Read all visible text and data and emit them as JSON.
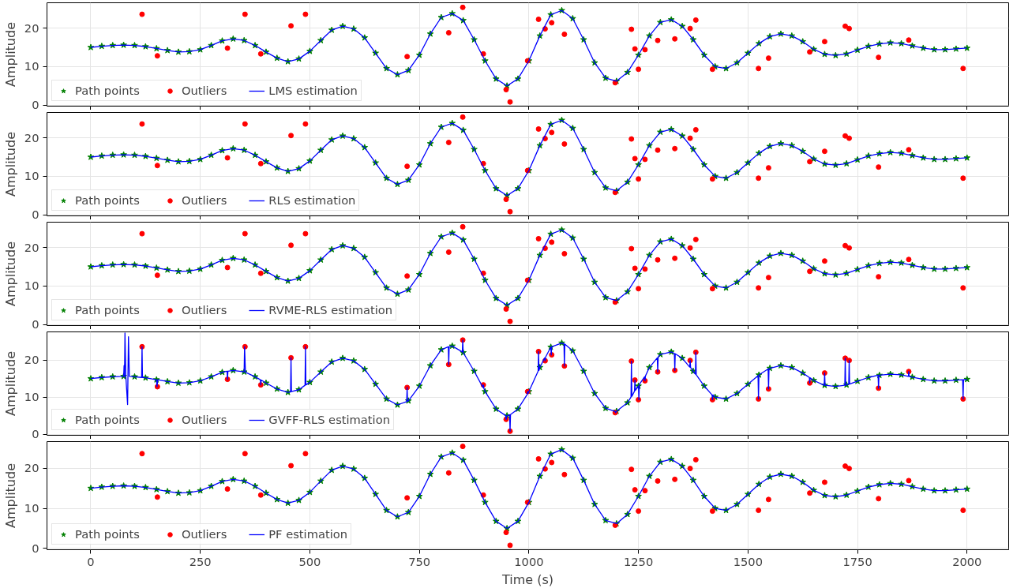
{
  "chart_data": [
    {
      "type": "line",
      "ylabel": "Amplitude",
      "xlim": [
        -100,
        2095
      ],
      "ylim": [
        -0.3,
        26.6
      ],
      "xticks": [
        0,
        250,
        500,
        750,
        1000,
        1250,
        1500,
        1750,
        2000
      ],
      "yticks": [
        0,
        10,
        20
      ],
      "tick_labels": "y",
      "grid": true,
      "legend": "bottom left",
      "x": [
        0,
        25,
        50,
        75,
        100,
        125,
        150,
        175,
        200,
        225,
        250,
        275,
        300,
        325,
        350,
        375,
        400,
        425,
        450,
        475,
        500,
        525,
        550,
        575,
        600,
        625,
        650,
        675,
        700,
        725,
        750,
        775,
        800,
        825,
        850,
        875,
        900,
        925,
        950,
        975,
        1000,
        1025,
        1050,
        1075,
        1100,
        1125,
        1150,
        1175,
        1200,
        1225,
        1250,
        1275,
        1300,
        1325,
        1350,
        1375,
        1400,
        1425,
        1450,
        1475,
        1500,
        1525,
        1550,
        1575,
        1600,
        1625,
        1650,
        1675,
        1700,
        1725,
        1750,
        1775,
        1800,
        1825,
        1850,
        1875,
        1900,
        1925,
        1950,
        1975,
        2000
      ],
      "series": [
        {
          "name": "Path points",
          "type": "scatter",
          "marker": "star",
          "color": "#008000",
          "values": [
            15,
            15.3,
            15.5,
            15.6,
            15.5,
            15.2,
            14.7,
            14.2,
            13.8,
            13.9,
            14.4,
            15.5,
            16.7,
            17.2,
            16.8,
            15.5,
            13.8,
            12.2,
            11.3,
            12.0,
            14.0,
            16.8,
            19.5,
            20.5,
            19.8,
            17.5,
            13.5,
            9.5,
            7.9,
            9.0,
            13.0,
            18.5,
            22.8,
            23.8,
            22.0,
            17.0,
            11.5,
            6.8,
            5.0,
            6.8,
            11.5,
            18.0,
            23.5,
            24.6,
            22.5,
            17.0,
            11.0,
            7.0,
            6.2,
            8.5,
            13.0,
            18.0,
            21.5,
            22.2,
            20.5,
            17.0,
            13.0,
            10.0,
            9.5,
            11.0,
            13.5,
            16.0,
            17.8,
            18.5,
            18.0,
            16.5,
            14.5,
            13.2,
            12.9,
            13.3,
            14.3,
            15.3,
            15.9,
            16.2,
            16.0,
            15.4,
            14.8,
            14.4,
            14.4,
            14.6,
            14.8
          ]
        },
        {
          "name": "Outliers",
          "type": "scatter",
          "marker": "circle",
          "color": "#ff0000",
          "x": [
            117,
            152,
            312,
            352,
            388,
            457,
            490,
            722,
            817,
            849,
            896,
            948,
            957,
            997,
            1022,
            1037,
            1052,
            1081,
            1197,
            1234,
            1242,
            1250,
            1265,
            1294,
            1333,
            1368,
            1381,
            1419,
            1524,
            1547,
            1641,
            1675,
            1722,
            1731,
            1798,
            1867,
            1991
          ],
          "values": [
            23.6,
            12.8,
            14.8,
            23.6,
            13.3,
            20.6,
            23.6,
            12.6,
            18.8,
            25.4,
            13.3,
            4.0,
            0.8,
            11.5,
            22.3,
            19.8,
            21.4,
            18.4,
            5.8,
            19.7,
            14.6,
            9.3,
            14.4,
            16.8,
            17.2,
            19.9,
            22.1,
            9.3,
            9.5,
            12.2,
            13.8,
            16.5,
            20.5,
            19.9,
            12.4,
            16.9,
            9.5
          ]
        },
        {
          "name": "LMS estimation",
          "line_style": "solid",
          "color": "#0000ff",
          "values": [
            15,
            15.3,
            15.5,
            15.6,
            15.5,
            15.2,
            14.7,
            14.2,
            13.8,
            13.9,
            14.4,
            15.5,
            16.7,
            17.2,
            16.8,
            15.5,
            13.8,
            12.2,
            11.3,
            12.0,
            14.0,
            16.8,
            19.5,
            20.5,
            19.8,
            17.5,
            13.5,
            9.5,
            7.9,
            9.0,
            13.0,
            18.5,
            22.8,
            23.8,
            22.0,
            17.0,
            11.5,
            6.8,
            5.0,
            6.8,
            11.5,
            18.0,
            23.5,
            24.6,
            22.5,
            17.0,
            11.0,
            7.0,
            6.2,
            8.5,
            13.0,
            18.0,
            21.5,
            22.2,
            20.5,
            17.0,
            13.0,
            10.0,
            9.5,
            11.0,
            13.5,
            16.0,
            17.8,
            18.5,
            18.0,
            16.5,
            14.5,
            13.2,
            12.9,
            13.3,
            14.3,
            15.3,
            15.9,
            16.2,
            16.0,
            15.4,
            14.8,
            14.4,
            14.4,
            14.6,
            14.8
          ]
        }
      ]
    },
    {
      "type": "line",
      "ylabel": "Amplitude",
      "xlim": [
        -100,
        2095
      ],
      "ylim": [
        -0.3,
        26.6
      ],
      "xticks": [
        0,
        250,
        500,
        750,
        1000,
        1250,
        1500,
        1750,
        2000
      ],
      "yticks": [
        0,
        10,
        20
      ],
      "tick_labels": "y",
      "grid": true,
      "legend": "bottom left",
      "x": [
        0,
        25,
        50,
        75,
        100,
        125,
        150,
        175,
        200,
        225,
        250,
        275,
        300,
        325,
        350,
        375,
        400,
        425,
        450,
        475,
        500,
        525,
        550,
        575,
        600,
        625,
        650,
        675,
        700,
        725,
        750,
        775,
        800,
        825,
        850,
        875,
        900,
        925,
        950,
        975,
        1000,
        1025,
        1050,
        1075,
        1100,
        1125,
        1150,
        1175,
        1200,
        1225,
        1250,
        1275,
        1300,
        1325,
        1350,
        1375,
        1400,
        1425,
        1450,
        1475,
        1500,
        1525,
        1550,
        1575,
        1600,
        1625,
        1650,
        1675,
        1700,
        1725,
        1750,
        1775,
        1800,
        1825,
        1850,
        1875,
        1900,
        1925,
        1950,
        1975,
        2000
      ],
      "series": [
        {
          "name": "Path points",
          "type": "scatter",
          "marker": "star",
          "color": "#008000",
          "values": [
            15,
            15.3,
            15.5,
            15.6,
            15.5,
            15.2,
            14.7,
            14.2,
            13.8,
            13.9,
            14.4,
            15.5,
            16.7,
            17.2,
            16.8,
            15.5,
            13.8,
            12.2,
            11.3,
            12.0,
            14.0,
            16.8,
            19.5,
            20.5,
            19.8,
            17.5,
            13.5,
            9.5,
            7.9,
            9.0,
            13.0,
            18.5,
            22.8,
            23.8,
            22.0,
            17.0,
            11.5,
            6.8,
            5.0,
            6.8,
            11.5,
            18.0,
            23.5,
            24.6,
            22.5,
            17.0,
            11.0,
            7.0,
            6.2,
            8.5,
            13.0,
            18.0,
            21.5,
            22.2,
            20.5,
            17.0,
            13.0,
            10.0,
            9.5,
            11.0,
            13.5,
            16.0,
            17.8,
            18.5,
            18.0,
            16.5,
            14.5,
            13.2,
            12.9,
            13.3,
            14.3,
            15.3,
            15.9,
            16.2,
            16.0,
            15.4,
            14.8,
            14.4,
            14.4,
            14.6,
            14.8
          ]
        },
        {
          "name": "Outliers",
          "type": "scatter",
          "marker": "circle",
          "color": "#ff0000",
          "x": [
            117,
            152,
            312,
            352,
            388,
            457,
            490,
            722,
            817,
            849,
            896,
            948,
            957,
            997,
            1022,
            1037,
            1052,
            1081,
            1197,
            1234,
            1242,
            1250,
            1265,
            1294,
            1333,
            1368,
            1381,
            1419,
            1524,
            1547,
            1641,
            1675,
            1722,
            1731,
            1798,
            1867,
            1991
          ],
          "values": [
            23.6,
            12.8,
            14.8,
            23.6,
            13.3,
            20.6,
            23.6,
            12.6,
            18.8,
            25.4,
            13.3,
            4.0,
            0.8,
            11.5,
            22.3,
            19.8,
            21.4,
            18.4,
            5.8,
            19.7,
            14.6,
            9.3,
            14.4,
            16.8,
            17.2,
            19.9,
            22.1,
            9.3,
            9.5,
            12.2,
            13.8,
            16.5,
            20.5,
            19.9,
            12.4,
            16.9,
            9.5
          ]
        },
        {
          "name": "RLS estimation",
          "line_style": "solid",
          "color": "#0000ff",
          "values": [
            15,
            15.3,
            15.5,
            15.6,
            15.5,
            15.2,
            14.7,
            14.2,
            13.8,
            13.9,
            14.4,
            15.5,
            16.7,
            17.2,
            16.8,
            15.5,
            13.8,
            12.2,
            11.3,
            12.0,
            14.0,
            16.8,
            19.5,
            20.5,
            19.8,
            17.5,
            13.5,
            9.5,
            7.9,
            9.0,
            13.0,
            18.5,
            22.8,
            23.8,
            22.0,
            17.0,
            11.5,
            6.8,
            5.0,
            6.8,
            11.5,
            18.0,
            23.5,
            24.6,
            22.5,
            17.0,
            11.0,
            7.0,
            6.2,
            8.5,
            13.0,
            18.0,
            21.5,
            22.2,
            20.5,
            17.0,
            13.0,
            10.0,
            9.5,
            11.0,
            13.5,
            16.0,
            17.8,
            18.5,
            18.0,
            16.5,
            14.5,
            13.2,
            12.9,
            13.3,
            14.3,
            15.3,
            15.9,
            16.2,
            16.0,
            15.4,
            14.8,
            14.4,
            14.4,
            14.6,
            14.8
          ]
        }
      ]
    },
    {
      "type": "line",
      "ylabel": "Amplitude",
      "xlim": [
        -100,
        2095
      ],
      "ylim": [
        -0.3,
        26.6
      ],
      "xticks": [
        0,
        250,
        500,
        750,
        1000,
        1250,
        1500,
        1750,
        2000
      ],
      "yticks": [
        0,
        10,
        20
      ],
      "tick_labels": "y",
      "grid": true,
      "legend": "bottom left",
      "x": [
        0,
        25,
        50,
        75,
        100,
        125,
        150,
        175,
        200,
        225,
        250,
        275,
        300,
        325,
        350,
        375,
        400,
        425,
        450,
        475,
        500,
        525,
        550,
        575,
        600,
        625,
        650,
        675,
        700,
        725,
        750,
        775,
        800,
        825,
        850,
        875,
        900,
        925,
        950,
        975,
        1000,
        1025,
        1050,
        1075,
        1100,
        1125,
        1150,
        1175,
        1200,
        1225,
        1250,
        1275,
        1300,
        1325,
        1350,
        1375,
        1400,
        1425,
        1450,
        1475,
        1500,
        1525,
        1550,
        1575,
        1600,
        1625,
        1650,
        1675,
        1700,
        1725,
        1750,
        1775,
        1800,
        1825,
        1850,
        1875,
        1900,
        1925,
        1950,
        1975,
        2000
      ],
      "series": [
        {
          "name": "Path points",
          "type": "scatter",
          "marker": "star",
          "color": "#008000",
          "values": [
            15,
            15.3,
            15.5,
            15.6,
            15.5,
            15.2,
            14.7,
            14.2,
            13.8,
            13.9,
            14.4,
            15.5,
            16.7,
            17.2,
            16.8,
            15.5,
            13.8,
            12.2,
            11.3,
            12.0,
            14.0,
            16.8,
            19.5,
            20.5,
            19.8,
            17.5,
            13.5,
            9.5,
            7.9,
            9.0,
            13.0,
            18.5,
            22.8,
            23.8,
            22.0,
            17.0,
            11.5,
            6.8,
            5.0,
            6.8,
            11.5,
            18.0,
            23.5,
            24.6,
            22.5,
            17.0,
            11.0,
            7.0,
            6.2,
            8.5,
            13.0,
            18.0,
            21.5,
            22.2,
            20.5,
            17.0,
            13.0,
            10.0,
            9.5,
            11.0,
            13.5,
            16.0,
            17.8,
            18.5,
            18.0,
            16.5,
            14.5,
            13.2,
            12.9,
            13.3,
            14.3,
            15.3,
            15.9,
            16.2,
            16.0,
            15.4,
            14.8,
            14.4,
            14.4,
            14.6,
            14.8
          ]
        },
        {
          "name": "Outliers",
          "type": "scatter",
          "marker": "circle",
          "color": "#ff0000",
          "x": [
            117,
            152,
            312,
            352,
            388,
            457,
            490,
            722,
            817,
            849,
            896,
            948,
            957,
            997,
            1022,
            1037,
            1052,
            1081,
            1197,
            1234,
            1242,
            1250,
            1265,
            1294,
            1333,
            1368,
            1381,
            1419,
            1524,
            1547,
            1641,
            1675,
            1722,
            1731,
            1798,
            1867,
            1991
          ],
          "values": [
            23.6,
            12.8,
            14.8,
            23.6,
            13.3,
            20.6,
            23.6,
            12.6,
            18.8,
            25.4,
            13.3,
            4.0,
            0.8,
            11.5,
            22.3,
            19.8,
            21.4,
            18.4,
            5.8,
            19.7,
            14.6,
            9.3,
            14.4,
            16.8,
            17.2,
            19.9,
            22.1,
            9.3,
            9.5,
            12.2,
            13.8,
            16.5,
            20.5,
            19.9,
            12.4,
            16.9,
            9.5
          ]
        },
        {
          "name": "RVME-RLS estimation",
          "line_style": "solid",
          "color": "#0000ff",
          "values": [
            15,
            15.3,
            15.5,
            15.6,
            15.5,
            15.2,
            14.7,
            14.2,
            13.8,
            13.9,
            14.4,
            15.5,
            16.7,
            17.2,
            16.8,
            15.5,
            13.8,
            12.2,
            11.3,
            12.0,
            14.0,
            16.8,
            19.5,
            20.5,
            19.8,
            17.5,
            13.5,
            9.5,
            7.9,
            9.0,
            13.0,
            18.5,
            22.8,
            23.8,
            22.0,
            17.0,
            11.5,
            6.8,
            5.0,
            6.8,
            11.5,
            18.0,
            23.5,
            24.6,
            22.5,
            17.0,
            11.0,
            7.0,
            6.2,
            8.5,
            13.0,
            18.0,
            21.5,
            22.2,
            20.5,
            17.0,
            13.0,
            10.0,
            9.5,
            11.0,
            13.5,
            16.0,
            17.8,
            18.5,
            18.0,
            16.5,
            14.5,
            13.2,
            12.9,
            13.3,
            14.3,
            15.3,
            15.9,
            16.2,
            16.0,
            15.4,
            14.8,
            14.4,
            14.4,
            14.6,
            14.8
          ]
        }
      ]
    },
    {
      "type": "line",
      "ylabel": "Amplitude",
      "xlim": [
        -100,
        2095
      ],
      "ylim": [
        -0.3,
        27.6
      ],
      "xticks": [
        0,
        250,
        500,
        750,
        1000,
        1250,
        1500,
        1750,
        2000
      ],
      "yticks": [
        0,
        10,
        20
      ],
      "tick_labels": "y",
      "grid": true,
      "legend": "bottom left",
      "x": [
        0,
        25,
        50,
        75,
        100,
        125,
        150,
        175,
        200,
        225,
        250,
        275,
        300,
        325,
        350,
        375,
        400,
        425,
        450,
        475,
        500,
        525,
        550,
        575,
        600,
        625,
        650,
        675,
        700,
        725,
        750,
        775,
        800,
        825,
        850,
        875,
        900,
        925,
        950,
        975,
        1000,
        1025,
        1050,
        1075,
        1100,
        1125,
        1150,
        1175,
        1200,
        1225,
        1250,
        1275,
        1300,
        1325,
        1350,
        1375,
        1400,
        1425,
        1450,
        1475,
        1500,
        1525,
        1550,
        1575,
        1600,
        1625,
        1650,
        1675,
        1700,
        1725,
        1750,
        1775,
        1800,
        1825,
        1850,
        1875,
        1900,
        1925,
        1950,
        1975,
        2000
      ],
      "series": [
        {
          "name": "Path points",
          "type": "scatter",
          "marker": "star",
          "color": "#008000",
          "values": [
            15,
            15.3,
            15.5,
            15.6,
            15.5,
            15.2,
            14.7,
            14.2,
            13.8,
            13.9,
            14.4,
            15.5,
            16.7,
            17.2,
            16.8,
            15.5,
            13.8,
            12.2,
            11.3,
            12.0,
            14.0,
            16.8,
            19.5,
            20.5,
            19.8,
            17.5,
            13.5,
            9.5,
            7.9,
            9.0,
            13.0,
            18.5,
            22.8,
            23.8,
            22.0,
            17.0,
            11.5,
            6.8,
            5.0,
            6.8,
            11.5,
            18.0,
            23.5,
            24.6,
            22.5,
            17.0,
            11.0,
            7.0,
            6.2,
            8.5,
            13.0,
            18.0,
            21.5,
            22.2,
            20.5,
            17.0,
            13.0,
            10.0,
            9.5,
            11.0,
            13.5,
            16.0,
            17.8,
            18.5,
            18.0,
            16.5,
            14.5,
            13.2,
            12.9,
            13.3,
            14.3,
            15.3,
            15.9,
            16.2,
            16.0,
            15.4,
            14.8,
            14.4,
            14.4,
            14.6,
            14.8
          ]
        },
        {
          "name": "Outliers",
          "type": "scatter",
          "marker": "circle",
          "color": "#ff0000",
          "x": [
            117,
            152,
            312,
            352,
            388,
            457,
            490,
            722,
            817,
            849,
            896,
            948,
            957,
            997,
            1022,
            1037,
            1052,
            1081,
            1197,
            1234,
            1242,
            1250,
            1265,
            1294,
            1333,
            1368,
            1381,
            1419,
            1524,
            1547,
            1641,
            1675,
            1722,
            1731,
            1798,
            1867,
            1991
          ],
          "values": [
            23.6,
            12.8,
            14.8,
            23.6,
            13.3,
            20.6,
            23.6,
            12.6,
            18.8,
            25.4,
            13.3,
            4.0,
            0.8,
            11.5,
            22.3,
            19.8,
            21.4,
            18.4,
            5.8,
            19.7,
            14.6,
            9.3,
            14.4,
            16.8,
            17.2,
            19.9,
            22.1,
            9.3,
            9.5,
            12.2,
            13.8,
            16.5,
            20.5,
            19.9,
            12.4,
            16.9,
            9.5
          ]
        },
        {
          "name": "GVFF-RLS estimation",
          "line_style": "solid",
          "color": "#0000ff",
          "x": [
            0,
            25,
            50,
            75,
            76,
            77,
            78,
            80,
            84,
            86,
            88,
            100,
            116,
            117,
            118,
            125,
            150,
            151,
            153,
            175,
            200,
            225,
            250,
            275,
            300,
            311,
            312,
            313,
            325,
            350,
            351,
            353,
            375,
            387,
            388,
            389,
            400,
            425,
            450,
            456,
            457,
            458,
            475,
            489,
            490,
            491,
            500,
            525,
            550,
            575,
            600,
            625,
            650,
            675,
            700,
            721,
            722,
            723,
            725,
            750,
            775,
            800,
            816,
            817,
            818,
            825,
            848,
            849,
            850,
            875,
            895,
            896,
            897,
            900,
            925,
            947,
            948,
            950,
            956,
            957,
            958,
            975,
            996,
            997,
            998,
            1000,
            1021,
            1022,
            1023,
            1025,
            1036,
            1037,
            1038,
            1050,
            1051,
            1052,
            1075,
            1080,
            1081,
            1082,
            1100,
            1125,
            1150,
            1175,
            1197,
            1198,
            1200,
            1225,
            1233,
            1234,
            1235,
            1241,
            1242,
            1243,
            1250,
            1251,
            1252,
            1264,
            1265,
            1266,
            1275,
            1293,
            1294,
            1295,
            1300,
            1325,
            1332,
            1333,
            1334,
            1350,
            1367,
            1368,
            1369,
            1375,
            1380,
            1381,
            1382,
            1400,
            1418,
            1419,
            1420,
            1425,
            1450,
            1475,
            1500,
            1523,
            1524,
            1525,
            1546,
            1547,
            1548,
            1550,
            1575,
            1600,
            1625,
            1640,
            1641,
            1642,
            1650,
            1674,
            1675,
            1676,
            1700,
            1721,
            1722,
            1723,
            1730,
            1731,
            1732,
            1750,
            1775,
            1797,
            1798,
            1799,
            1825,
            1850,
            1866,
            1867,
            1868,
            1875,
            1900,
            1925,
            1950,
            1975,
            1990,
            1991,
            1992,
            2000
          ],
          "values": [
            15,
            15.3,
            15.5,
            15.6,
            18.5,
            15.6,
            27.3,
            15.6,
            8.0,
            26.3,
            15.6,
            15.5,
            15.3,
            23.6,
            15.3,
            15.2,
            14.7,
            12.8,
            14.7,
            14.2,
            13.8,
            13.9,
            14.4,
            15.5,
            16.7,
            17.0,
            14.8,
            17.0,
            17.2,
            16.8,
            23.6,
            16.7,
            15.5,
            14.7,
            13.3,
            14.6,
            13.8,
            12.2,
            11.3,
            11.4,
            20.6,
            11.5,
            12.0,
            13.2,
            23.6,
            13.3,
            14.0,
            16.8,
            19.5,
            20.5,
            19.8,
            17.5,
            13.5,
            9.5,
            7.9,
            8.8,
            12.6,
            8.9,
            9.0,
            13.0,
            18.5,
            22.8,
            23.6,
            18.8,
            23.6,
            23.8,
            22.2,
            25.4,
            22.0,
            17.0,
            12.6,
            13.3,
            12.4,
            11.5,
            6.8,
            5.0,
            4.0,
            5.0,
            5.2,
            0.8,
            5.3,
            6.8,
            10.7,
            11.5,
            11.0,
            11.5,
            17.0,
            22.3,
            17.2,
            18.0,
            20.6,
            19.8,
            20.8,
            23.5,
            21.4,
            23.6,
            24.6,
            24.4,
            18.4,
            24.3,
            22.5,
            17.0,
            11.0,
            7.0,
            6.1,
            5.8,
            6.2,
            8.5,
            10.0,
            19.7,
            10.2,
            11.6,
            14.6,
            11.8,
            13.0,
            9.3,
            13.4,
            15.5,
            14.4,
            15.7,
            18.0,
            20.6,
            16.8,
            20.8,
            21.5,
            22.2,
            21.8,
            17.2,
            21.7,
            20.5,
            18.1,
            19.9,
            18.0,
            17.0,
            16.2,
            22.1,
            16.0,
            13.0,
            10.6,
            9.3,
            10.6,
            10.0,
            9.5,
            11.0,
            13.5,
            15.8,
            9.5,
            16.0,
            17.6,
            12.2,
            17.7,
            17.8,
            18.5,
            18.0,
            16.5,
            15.3,
            13.8,
            15.2,
            14.5,
            13.2,
            16.5,
            13.2,
            12.9,
            13.2,
            20.5,
            13.2,
            13.5,
            19.9,
            13.5,
            14.3,
            15.3,
            15.9,
            12.4,
            15.9,
            16.2,
            16.0,
            15.6,
            16.9,
            15.6,
            15.4,
            14.8,
            14.4,
            14.4,
            14.6,
            14.7,
            9.5,
            14.7,
            14.8
          ]
        }
      ]
    },
    {
      "type": "line",
      "ylabel": "Amplitude",
      "xlabel": "Time (s)",
      "xlim": [
        -100,
        2095
      ],
      "ylim": [
        -0.3,
        26.6
      ],
      "xticks": [
        0,
        250,
        500,
        750,
        1000,
        1250,
        1500,
        1750,
        2000
      ],
      "yticks": [
        0,
        10,
        20
      ],
      "grid": true,
      "legend": "bottom left",
      "x": [
        0,
        25,
        50,
        75,
        100,
        125,
        150,
        175,
        200,
        225,
        250,
        275,
        300,
        325,
        350,
        375,
        400,
        425,
        450,
        475,
        500,
        525,
        550,
        575,
        600,
        625,
        650,
        675,
        700,
        725,
        750,
        775,
        800,
        825,
        850,
        875,
        900,
        925,
        950,
        975,
        1000,
        1025,
        1050,
        1075,
        1100,
        1125,
        1150,
        1175,
        1200,
        1225,
        1250,
        1275,
        1300,
        1325,
        1350,
        1375,
        1400,
        1425,
        1450,
        1475,
        1500,
        1525,
        1550,
        1575,
        1600,
        1625,
        1650,
        1675,
        1700,
        1725,
        1750,
        1775,
        1800,
        1825,
        1850,
        1875,
        1900,
        1925,
        1950,
        1975,
        2000
      ],
      "series": [
        {
          "name": "Path points",
          "type": "scatter",
          "marker": "star",
          "color": "#008000",
          "values": [
            15,
            15.3,
            15.5,
            15.6,
            15.5,
            15.2,
            14.7,
            14.2,
            13.8,
            13.9,
            14.4,
            15.5,
            16.7,
            17.2,
            16.8,
            15.5,
            13.8,
            12.2,
            11.3,
            12.0,
            14.0,
            16.8,
            19.5,
            20.5,
            19.8,
            17.5,
            13.5,
            9.5,
            7.9,
            9.0,
            13.0,
            18.5,
            22.8,
            23.8,
            22.0,
            17.0,
            11.5,
            6.8,
            5.0,
            6.8,
            11.5,
            18.0,
            23.5,
            24.6,
            22.5,
            17.0,
            11.0,
            7.0,
            6.2,
            8.5,
            13.0,
            18.0,
            21.5,
            22.2,
            20.5,
            17.0,
            13.0,
            10.0,
            9.5,
            11.0,
            13.5,
            16.0,
            17.8,
            18.5,
            18.0,
            16.5,
            14.5,
            13.2,
            12.9,
            13.3,
            14.3,
            15.3,
            15.9,
            16.2,
            16.0,
            15.4,
            14.8,
            14.4,
            14.4,
            14.6,
            14.8
          ]
        },
        {
          "name": "Outliers",
          "type": "scatter",
          "marker": "circle",
          "color": "#ff0000",
          "x": [
            117,
            152,
            312,
            352,
            388,
            457,
            490,
            722,
            817,
            849,
            896,
            948,
            957,
            997,
            1022,
            1037,
            1052,
            1081,
            1197,
            1234,
            1242,
            1250,
            1265,
            1294,
            1333,
            1368,
            1381,
            1419,
            1524,
            1547,
            1641,
            1675,
            1722,
            1731,
            1798,
            1867,
            1991
          ],
          "values": [
            23.6,
            12.8,
            14.8,
            23.6,
            13.3,
            20.6,
            23.6,
            12.6,
            18.8,
            25.4,
            13.3,
            4.0,
            0.8,
            11.5,
            22.3,
            19.8,
            21.4,
            18.4,
            5.8,
            19.7,
            14.6,
            9.3,
            14.4,
            16.8,
            17.2,
            19.9,
            22.1,
            9.3,
            9.5,
            12.2,
            13.8,
            16.5,
            20.5,
            19.9,
            12.4,
            16.9,
            9.5
          ]
        },
        {
          "name": "PF estimation",
          "line_style": "solid",
          "color": "#0000ff",
          "values": [
            15,
            15.3,
            15.5,
            15.6,
            15.5,
            15.2,
            14.7,
            14.2,
            13.8,
            13.9,
            14.4,
            15.5,
            16.7,
            17.2,
            16.8,
            15.5,
            13.8,
            12.2,
            11.3,
            12.0,
            14.0,
            16.8,
            19.5,
            20.5,
            19.8,
            17.5,
            13.5,
            9.5,
            7.9,
            9.0,
            13.0,
            18.5,
            22.8,
            23.8,
            22.0,
            17.0,
            11.5,
            6.8,
            5.0,
            6.8,
            11.5,
            18.0,
            23.5,
            24.6,
            22.5,
            17.0,
            11.0,
            7.0,
            6.2,
            8.5,
            13.0,
            18.0,
            21.5,
            22.2,
            20.5,
            17.0,
            13.0,
            10.0,
            9.5,
            11.0,
            13.5,
            16.0,
            17.8,
            18.5,
            18.0,
            16.5,
            14.5,
            13.2,
            12.9,
            13.3,
            14.3,
            15.3,
            15.9,
            16.2,
            16.0,
            15.4,
            14.8,
            14.4,
            14.4,
            14.6,
            14.8
          ]
        }
      ]
    }
  ]
}
